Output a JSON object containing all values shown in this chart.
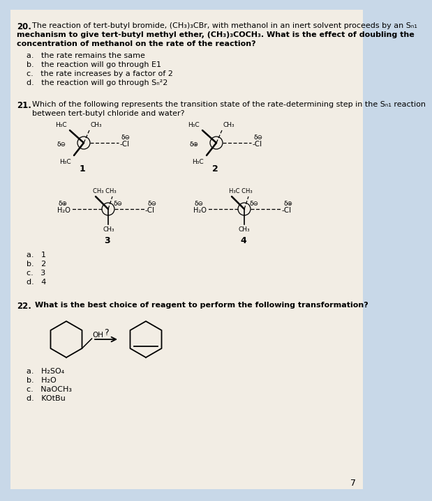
{
  "bg_color": "#c8d8e8",
  "paper_color": "#f2ede4",
  "q20_number": "20.",
  "q20_line1": "The reaction of tert-butyl bromide, (CH₃)₃CBr, with methanol in an inert solvent proceeds by an Sₙ₁",
  "q20_line2": "mechanism to give tert-butyl methyl ether, (CH₃)₃COCH₃. What is the effect of doubling the",
  "q20_line3": "concentration of methanol on the rate of the reaction?",
  "q20_a": "a.   the rate remains the same",
  "q20_b": "b.   the reaction will go through E1",
  "q20_c": "c.   the rate increases by a factor of 2",
  "q20_d": "d.   the reaction will go through Sₙ²2",
  "q21_number": "21.",
  "q21_line1": "Which of the following represents the transition state of the rate-determining step in the Sₙ₁ reaction",
  "q21_line2": "between tert-butyl chloride and water?",
  "q21_a": "a.   1",
  "q21_b": "b.   2",
  "q21_c": "c.   3",
  "q21_d": "d.   4",
  "q22_number": "22.",
  "q22_text": "What is the best choice of reagent to perform the following transformation?",
  "q22_a": "a.   H₂SO₄",
  "q22_b": "b.   H₂O",
  "q22_c": "c.   NaOCH₃",
  "q22_d": "d.   KOtBu",
  "page_number": "7"
}
